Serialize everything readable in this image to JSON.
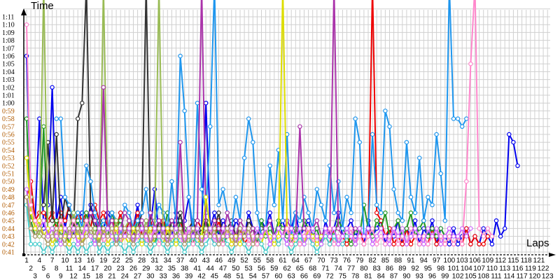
{
  "chart_data": {
    "type": "line",
    "title": "",
    "ylabel": "Time",
    "xlabel": "Laps",
    "ylim_seconds": [
      40,
      73
    ],
    "xlim": [
      1,
      123
    ],
    "grid": true,
    "legend": "none",
    "y_ticks": [
      "0:41",
      "0:42",
      "0:43",
      "0:44",
      "0:45",
      "0:46",
      "0:47",
      "0:48",
      "0:49",
      "0:50",
      "0:51",
      "0:52",
      "0:53",
      "0:54",
      "0:55",
      "0:56",
      "0:57",
      "0:58",
      "0:59",
      "1:00",
      "1:01",
      "1:02",
      "1:03",
      "1:04",
      "1:05",
      "1:06",
      "1:07",
      "1:08",
      "1:09",
      "1:10",
      "1:11"
    ],
    "y_tick_colors": {
      "below_1_00": "#b05a00",
      "from_1_00": "#000000"
    },
    "x_ticks": [
      1,
      2,
      3,
      4,
      5,
      6,
      7,
      8,
      9,
      10,
      11,
      12,
      13,
      14,
      15,
      16,
      17,
      18,
      19,
      20,
      21,
      22,
      23,
      24,
      25,
      26,
      27,
      28,
      29,
      30,
      31,
      32,
      33,
      34,
      35,
      36,
      37,
      38,
      39,
      40,
      41,
      42,
      43,
      44,
      45,
      46,
      47,
      48,
      49,
      50,
      51,
      52,
      53,
      54,
      55,
      56,
      57,
      58,
      59,
      60,
      61,
      62,
      63,
      64,
      65,
      66,
      67,
      68,
      69,
      70,
      71,
      72,
      73,
      74,
      75,
      76,
      77,
      78,
      79,
      80,
      81,
      82,
      83,
      84,
      85,
      86,
      87,
      88,
      89,
      90,
      91,
      92,
      93,
      94,
      95,
      96,
      97,
      98,
      99,
      100,
      101,
      102,
      103,
      104,
      105,
      106,
      107,
      108,
      109,
      110,
      111,
      112,
      113,
      114,
      115,
      116,
      117,
      118,
      119,
      120,
      121,
      122,
      123
    ],
    "series": [
      {
        "color": "#0000ee",
        "start": 1,
        "values_seconds": [
          66,
          48,
          45,
          58,
          44,
          47,
          62,
          45,
          48,
          44,
          47,
          43,
          45,
          46,
          44,
          47,
          45,
          43,
          44,
          46,
          45,
          44,
          46,
          43,
          45,
          44,
          47,
          43,
          45,
          44,
          49,
          43,
          45,
          44,
          43,
          46,
          44,
          45,
          48,
          43,
          45,
          44,
          60,
          44,
          46,
          43,
          45,
          44,
          43,
          45,
          44,
          43,
          46,
          44,
          43,
          45,
          44,
          46,
          43,
          44,
          45,
          43,
          44,
          46,
          43,
          44,
          45,
          43,
          44,
          42,
          45,
          43,
          44,
          46,
          43,
          44,
          45,
          43,
          44,
          42,
          45,
          43,
          44,
          45,
          42,
          44,
          43,
          45,
          42,
          44,
          43,
          45,
          42,
          44,
          43,
          45,
          42,
          44,
          43,
          42,
          44,
          42,
          43,
          44,
          42,
          43,
          42,
          44,
          43,
          42,
          45,
          43,
          44,
          56,
          55,
          52
        ]
      },
      {
        "color": "#ee0000",
        "start": 1,
        "values_seconds": [
          48,
          50,
          45,
          46,
          46,
          45,
          46,
          44,
          46,
          45,
          47,
          44,
          46,
          45,
          46,
          44,
          47,
          45,
          46,
          44,
          45,
          44,
          46,
          43,
          45,
          44,
          46,
          43,
          44,
          45,
          43,
          44,
          45,
          43,
          44,
          43,
          45,
          43,
          44,
          43,
          45,
          44,
          43,
          44,
          43,
          45,
          43,
          44,
          42,
          43,
          44,
          42,
          43,
          44,
          42,
          43,
          44,
          42,
          43,
          42,
          43,
          44,
          42,
          43,
          42,
          43,
          44,
          42,
          43,
          42,
          43,
          42,
          44,
          42,
          43,
          42,
          43,
          42,
          44,
          42,
          43,
          90,
          46,
          45,
          43,
          44,
          42,
          43,
          42,
          44,
          42,
          43,
          42,
          43,
          42,
          44,
          42,
          43,
          42,
          43,
          42,
          43,
          42,
          44,
          42,
          43,
          42,
          42,
          43
        ]
      },
      {
        "color": "#229922",
        "start": 1,
        "values_seconds": [
          58,
          45,
          43,
          44,
          57,
          43,
          44,
          45,
          43,
          44,
          42,
          44,
          45,
          43,
          46,
          44,
          43,
          45,
          44,
          43,
          46,
          44,
          45,
          43,
          44,
          43,
          45,
          44,
          43,
          44,
          42,
          44,
          43,
          46,
          44,
          43,
          45,
          44,
          43,
          42,
          44,
          43,
          45,
          44,
          43,
          44,
          42,
          43,
          44,
          43,
          45,
          44,
          43,
          44,
          42,
          45,
          43,
          44,
          43,
          45,
          44,
          43,
          42,
          44,
          43,
          45,
          44,
          43,
          44,
          42,
          43,
          44,
          43,
          45,
          44,
          43,
          42,
          44,
          43,
          47,
          44,
          43,
          45,
          44,
          46,
          43,
          44,
          45,
          43,
          44,
          46,
          43,
          44,
          45,
          43,
          44,
          43,
          44,
          43
        ]
      },
      {
        "color": "#333333",
        "start": 5,
        "values_seconds": [
          47,
          55,
          45,
          56,
          44,
          48,
          46,
          44,
          58,
          60,
          90,
          46,
          44,
          45,
          43,
          44,
          46,
          45,
          43,
          44,
          45,
          43,
          44,
          46,
          90,
          44,
          43,
          45,
          44,
          43,
          45,
          44,
          46,
          43,
          44,
          45,
          43,
          44,
          45,
          43,
          44,
          46,
          43,
          44,
          45,
          43,
          44,
          43,
          45,
          44,
          43,
          44
        ]
      },
      {
        "color": "#1e96ee",
        "start": 8,
        "values_seconds": [
          58,
          58,
          48,
          47,
          45,
          46,
          44,
          52,
          50,
          46,
          44,
          45,
          44,
          46,
          45,
          43,
          47,
          46,
          44,
          45,
          46,
          49,
          44,
          45,
          47,
          46,
          44,
          50,
          45,
          66,
          59,
          48,
          44,
          60,
          49,
          46,
          57,
          90,
          47,
          49,
          46,
          44,
          48,
          45,
          53,
          58,
          55,
          46,
          43,
          44,
          52,
          47,
          54,
          45,
          56,
          43,
          46,
          45,
          48,
          46,
          44,
          49,
          47,
          45,
          52,
          46,
          50,
          44,
          48,
          46,
          58,
          55,
          43,
          44,
          56,
          47,
          46,
          59,
          57,
          49,
          46,
          45,
          55,
          48,
          46,
          53,
          45,
          48,
          47,
          56,
          51,
          45,
          90,
          58,
          58,
          57,
          58
        ]
      },
      {
        "color": "#99bb55",
        "start": 2,
        "values_seconds": [
          48,
          44,
          43,
          90,
          43,
          44,
          42,
          45,
          43,
          44,
          46,
          43,
          44,
          45,
          43,
          44,
          42,
          90,
          44,
          43,
          45,
          43,
          44,
          45,
          43,
          44,
          43,
          45,
          43,
          44,
          90,
          43,
          44,
          42,
          43,
          44,
          43,
          42,
          44,
          43
        ]
      },
      {
        "color": "#aa33aa",
        "start": 15,
        "values_seconds": [
          44,
          46,
          45,
          44,
          62,
          44,
          45,
          43,
          44,
          46,
          45,
          43,
          44,
          45,
          43,
          46,
          44,
          45,
          43,
          44,
          45,
          44,
          55,
          43,
          44,
          43,
          45,
          90,
          44,
          43,
          45,
          44,
          43,
          46,
          44,
          43,
          45,
          44,
          43,
          44,
          42,
          43,
          44,
          45,
          43,
          44,
          43,
          45,
          44,
          43,
          57,
          44,
          43,
          44,
          45,
          43,
          44,
          43,
          90,
          44,
          43,
          44,
          43,
          44
        ]
      },
      {
        "color": "#dddd00",
        "start": 1,
        "values_seconds": [
          53,
          46,
          44,
          45,
          43,
          44,
          42,
          43,
          44,
          43,
          42,
          44,
          43,
          42,
          44,
          43,
          42,
          43,
          44,
          42,
          43,
          44,
          42,
          43,
          42,
          44,
          43,
          42,
          43,
          44,
          42,
          43,
          42,
          44,
          43,
          42,
          43,
          42,
          44,
          43,
          42,
          43,
          48,
          44,
          43,
          42,
          43,
          44,
          42,
          43,
          42,
          44,
          43,
          42,
          43,
          42,
          44,
          43,
          42,
          43,
          90,
          44,
          43,
          42,
          43,
          42,
          44,
          43,
          42,
          43
        ]
      },
      {
        "color": "#ff88cc",
        "start": 1,
        "values_seconds": [
          70,
          47,
          45,
          44,
          45,
          43,
          44,
          43,
          45,
          44,
          43,
          45,
          44,
          43,
          45,
          44,
          43,
          44,
          42,
          43,
          44,
          43,
          42,
          44,
          43,
          42,
          43,
          44,
          42,
          43,
          44,
          42,
          43,
          42,
          44,
          43,
          42,
          43,
          44,
          42,
          43,
          42,
          43,
          44,
          42,
          43,
          42,
          44,
          43,
          42,
          43,
          44,
          42,
          43,
          42,
          43,
          44,
          42,
          43,
          42,
          43,
          44,
          42,
          43,
          42,
          43,
          44,
          42,
          43,
          42,
          43,
          44,
          42,
          43,
          42,
          43,
          44,
          42,
          43,
          42,
          43,
          44,
          42,
          43,
          42,
          43,
          44,
          42,
          43,
          42,
          44,
          43,
          42,
          43,
          42,
          43,
          44,
          43,
          42,
          43,
          42,
          43,
          42,
          50,
          65,
          90,
          44,
          43,
          44,
          43
        ]
      },
      {
        "color": "#44cccc",
        "start": 1,
        "values_seconds": [
          47,
          42,
          42,
          42,
          41,
          42,
          41,
          42,
          43,
          42,
          41,
          42,
          41,
          42,
          41,
          42,
          43,
          41,
          42,
          41,
          42,
          43,
          42,
          41,
          42,
          41,
          42,
          43,
          42,
          41,
          42,
          43,
          42,
          41,
          42,
          43,
          42,
          41,
          42,
          43,
          42,
          41,
          42,
          43,
          42,
          42,
          43,
          42,
          41,
          42,
          43,
          42,
          41,
          42,
          43,
          42,
          41,
          42,
          43,
          42,
          43,
          42,
          41,
          42,
          43,
          42,
          43,
          42,
          41,
          42,
          43,
          42,
          43,
          42,
          42,
          43
        ]
      },
      {
        "color": "#cc66ff",
        "start": 1,
        "values_seconds": [
          49,
          44,
          43,
          44,
          45,
          43,
          44,
          43,
          42,
          44,
          43,
          44,
          42,
          43,
          44,
          43,
          42,
          44,
          43,
          44,
          43,
          42,
          44,
          43,
          44,
          42,
          43,
          44,
          43,
          42,
          44,
          43,
          44,
          42,
          43,
          44,
          43,
          42,
          44,
          43,
          44,
          42,
          43,
          44,
          43,
          42,
          44,
          43,
          44,
          42,
          43,
          44,
          43,
          42,
          44,
          43,
          44,
          42,
          43,
          44,
          43,
          42,
          44,
          43,
          44,
          42,
          43,
          44,
          43,
          42,
          44,
          43,
          44,
          42,
          43,
          44,
          43,
          42,
          44,
          43,
          44,
          42,
          43,
          44,
          43,
          42,
          44,
          43,
          44,
          42,
          43,
          44,
          43,
          42,
          44,
          43,
          44,
          42,
          43,
          44,
          43,
          43,
          44,
          43,
          44
        ]
      },
      {
        "color": "#aa9966",
        "start": 1,
        "values_seconds": [
          48,
          44,
          43,
          44,
          43,
          42,
          43,
          44,
          43,
          42,
          44,
          43,
          44,
          42,
          43,
          44,
          43,
          42,
          44,
          43,
          44,
          42,
          43,
          44,
          43,
          42,
          44,
          43,
          44,
          42,
          43,
          44,
          43,
          42,
          44,
          43,
          44,
          42,
          43,
          44,
          43,
          42,
          44,
          43,
          44,
          42,
          43,
          44,
          43,
          42,
          44,
          43,
          44,
          42,
          43
        ]
      }
    ]
  }
}
